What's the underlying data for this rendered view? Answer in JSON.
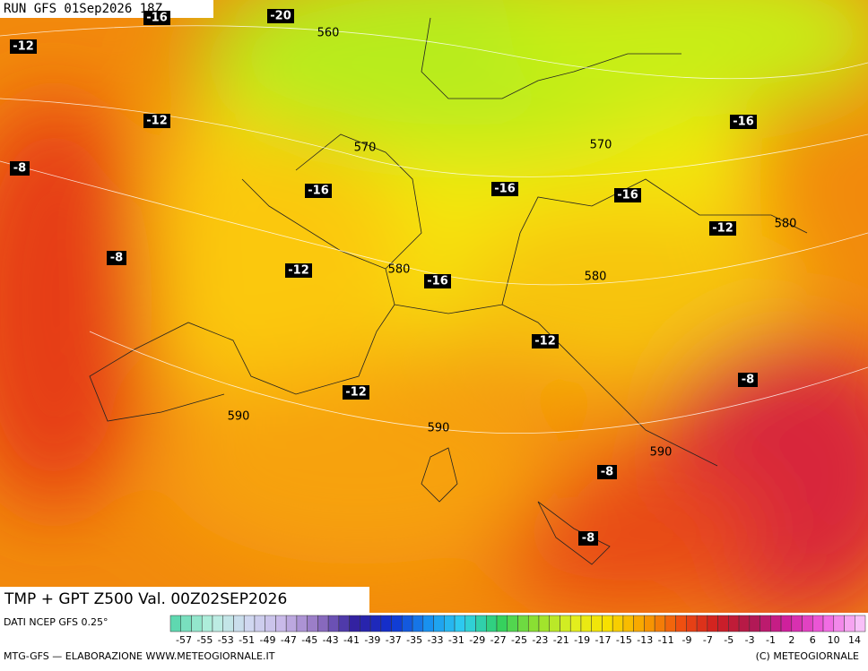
{
  "header": {
    "run": "RUN GFS 01Sep2026 18Z"
  },
  "map": {
    "temperature_labels": [
      "-16",
      "-20",
      "-12",
      "-12",
      "-8",
      "-16",
      "-16",
      "-16",
      "-16",
      "-8",
      "-12",
      "-16",
      "-12",
      "-12",
      "-12",
      "-8",
      "-8",
      "-8"
    ],
    "height_labels": [
      "560",
      "570",
      "570",
      "580",
      "580",
      "580",
      "590",
      "590",
      "590"
    ]
  },
  "product": {
    "title": "TMP + GPT Z500 Val. 00Z02SEP2026"
  },
  "legend": {
    "source": "DATI NCEP GFS 0.25°",
    "labels": [
      "-57",
      "-55",
      "-53",
      "-51",
      "-49",
      "-47",
      "-45",
      "-43",
      "-41",
      "-39",
      "-37",
      "-35",
      "-33",
      "-31",
      "-29",
      "-27",
      "-25",
      "-23",
      "-21",
      "-19",
      "-17",
      "-15",
      "-13",
      "-11",
      "-9",
      "-7",
      "-5",
      "-3",
      "-1",
      "2",
      "6",
      "10",
      "14"
    ]
  },
  "footer": {
    "left": "MTG-GFS — ELABORAZIONE WWW.METEOGIORNALE.IT",
    "right": "(C) METEOGIORNALE"
  }
}
